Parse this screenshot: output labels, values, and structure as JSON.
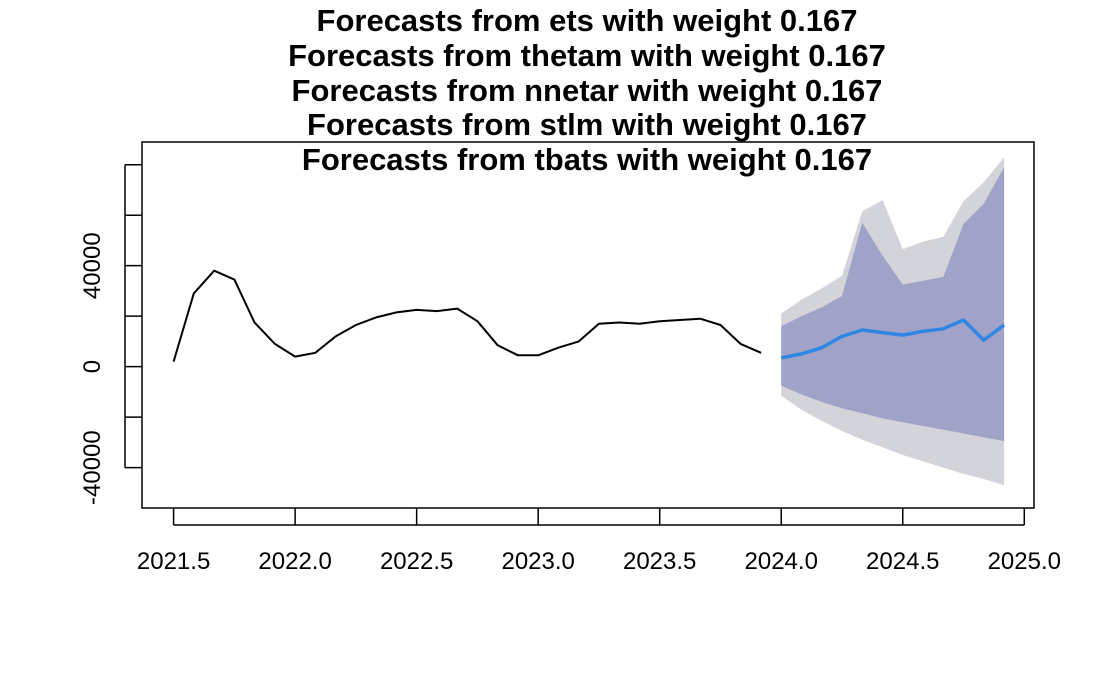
{
  "chart_data": {
    "type": "line",
    "title_lines": [
      "Forecasts from ets with weight 0.167",
      "Forecasts from thetam with weight 0.167",
      "Forecasts from nnetar with weight 0.167",
      "Forecasts from stlm with weight 0.167",
      "Forecasts from tbats with weight 0.167"
    ],
    "xlabel": "",
    "ylabel": "",
    "xlim": [
      2021.37,
      2025.04
    ],
    "ylim": [
      -56000,
      89000
    ],
    "x_ticks": [
      2021.5,
      2022.0,
      2022.5,
      2023.0,
      2023.5,
      2024.0,
      2024.5,
      2025.0
    ],
    "x_tick_labels": [
      "2021.5",
      "2022.0",
      "2022.5",
      "2023.0",
      "2023.5",
      "2024.0",
      "2024.5",
      "2025.0"
    ],
    "y_ticks": [
      -40000,
      -20000,
      0,
      20000,
      40000,
      60000,
      80000
    ],
    "y_tick_labels": [
      "-40000",
      "",
      "0",
      "",
      "40000",
      "",
      ""
    ],
    "grid": false,
    "colors": {
      "history": "#000000",
      "forecast": "#2f86e4",
      "band80": "#a0a3c7",
      "band95": "#d3d3da"
    },
    "history": {
      "x": [
        2021.5,
        2021.583,
        2021.667,
        2021.75,
        2021.833,
        2021.917,
        2022.0,
        2022.083,
        2022.167,
        2022.25,
        2022.333,
        2022.417,
        2022.5,
        2022.583,
        2022.667,
        2022.75,
        2022.833,
        2022.917,
        2023.0,
        2023.083,
        2023.167,
        2023.25,
        2023.333,
        2023.417,
        2023.5,
        2023.583,
        2023.667,
        2023.75,
        2023.833,
        2023.917
      ],
      "y": [
        2000,
        29000,
        38000,
        34500,
        17500,
        9000,
        4000,
        5500,
        12000,
        16500,
        19500,
        21500,
        22500,
        22000,
        23000,
        18000,
        8500,
        4500,
        4500,
        7500,
        10000,
        17000,
        17500,
        17000,
        18000,
        18500,
        19000,
        16500,
        9000,
        5500
      ]
    },
    "forecast": {
      "x": [
        2024.0,
        2024.083,
        2024.167,
        2024.25,
        2024.333,
        2024.417,
        2024.5,
        2024.583,
        2024.667,
        2024.75,
        2024.833,
        2024.917
      ],
      "mean": [
        3500,
        5000,
        7500,
        12000,
        14500,
        13500,
        12500,
        14000,
        15000,
        18500,
        10500,
        16500
      ],
      "lo80": [
        -7500,
        -11000,
        -14000,
        -16500,
        -18500,
        -20500,
        -22000,
        -23500,
        -25000,
        -26500,
        -28000,
        -29500
      ],
      "hi80": [
        16000,
        20000,
        23500,
        28000,
        57000,
        44000,
        32500,
        34000,
        35500,
        56500,
        64500,
        79000
      ],
      "lo95": [
        -11500,
        -17000,
        -21500,
        -25500,
        -29000,
        -32000,
        -35000,
        -37500,
        -40000,
        -42500,
        -44500,
        -47000
      ],
      "hi95": [
        21000,
        26500,
        31000,
        36000,
        61500,
        66000,
        46500,
        49500,
        51500,
        65500,
        73000,
        83000
      ]
    }
  }
}
